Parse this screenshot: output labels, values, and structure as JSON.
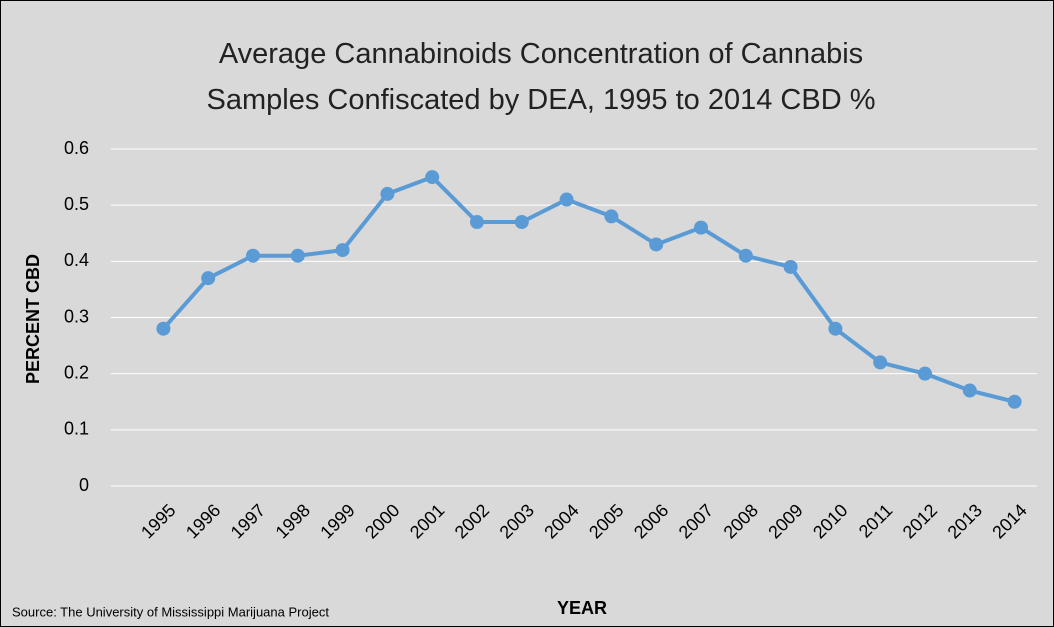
{
  "chart_data": {
    "type": "line",
    "title": "Average Cannabinoids Concentration of Cannabis Samples Confiscated by DEA, 1995 to 2014 CBD %",
    "x_label": "YEAR",
    "y_label": "PERCENT CBD",
    "source": "Source: The University of Mississippi Marijuana Project",
    "categories": [
      "1995",
      "1996",
      "1997",
      "1998",
      "1999",
      "2000",
      "2001",
      "2002",
      "2003",
      "2004",
      "2005",
      "2006",
      "2007",
      "2008",
      "2009",
      "2010",
      "2011",
      "2012",
      "2013",
      "2014"
    ],
    "series": [
      {
        "name": "CBD %",
        "color": "#5b9bd5",
        "values": [
          0.28,
          0.37,
          0.41,
          0.41,
          0.42,
          0.52,
          0.55,
          0.47,
          0.47,
          0.51,
          0.48,
          0.43,
          0.46,
          0.41,
          0.39,
          0.28,
          0.22,
          0.2,
          0.17,
          0.15
        ]
      }
    ],
    "ylim": [
      0,
      0.6
    ],
    "yticks": [
      0,
      0.1,
      0.2,
      0.3,
      0.4,
      0.5,
      0.6
    ],
    "grid": true
  }
}
